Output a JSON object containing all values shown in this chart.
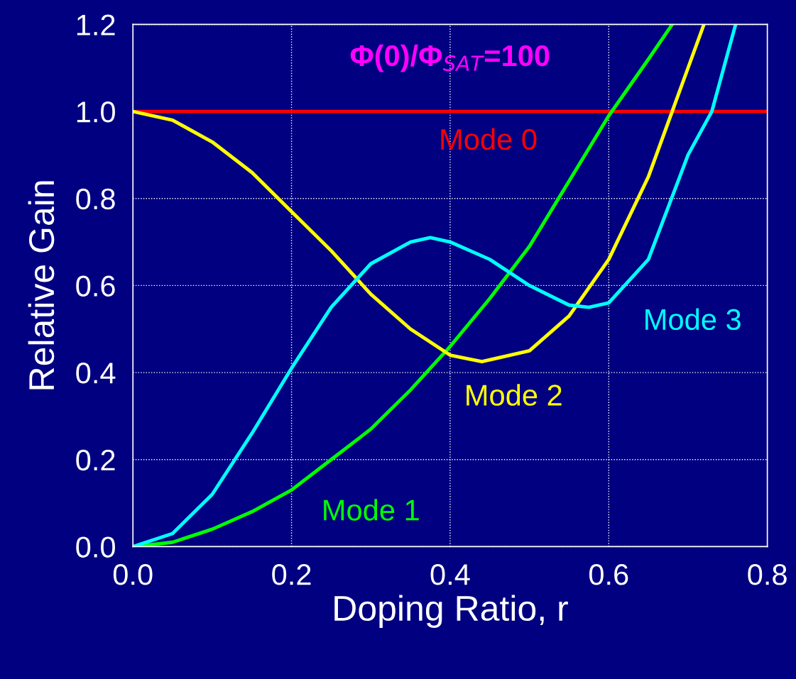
{
  "chart_data": {
    "type": "line",
    "xlabel": "Doping Ratio, r",
    "ylabel": "Relative Gain",
    "xlim": [
      0,
      0.8
    ],
    "ylim": [
      0,
      1.2
    ],
    "xticks": [
      {
        "value": 0,
        "label": "0.0"
      },
      {
        "value": 0.2,
        "label": "0.2"
      },
      {
        "value": 0.4,
        "label": "0.4"
      },
      {
        "value": 0.6,
        "label": "0.6"
      },
      {
        "value": 0.8,
        "label": "0.8"
      }
    ],
    "yticks": [
      {
        "value": 0,
        "label": "0.0"
      },
      {
        "value": 0.2,
        "label": "0.2"
      },
      {
        "value": 0.4,
        "label": "0.4"
      },
      {
        "value": 0.6,
        "label": "0.6"
      },
      {
        "value": 0.8,
        "label": "0.8"
      },
      {
        "value": 1.0,
        "label": "1.0"
      },
      {
        "value": 1.2,
        "label": "1.2"
      }
    ],
    "grid": true,
    "marker": "none",
    "line_style": "solid",
    "legend": false,
    "annotations": [
      "Φ(0)/Φ$_{SAT}$=100"
    ],
    "series": [
      {
        "name": "Mode 0",
        "color": "#ff0000",
        "x": [
          0,
          0.8
        ],
        "values": [
          1.0,
          1.0
        ]
      },
      {
        "name": "Mode 1",
        "color": "#00ff00",
        "x": [
          0,
          0.05,
          0.1,
          0.15,
          0.2,
          0.25,
          0.3,
          0.35,
          0.4,
          0.45,
          0.5,
          0.55,
          0.6,
          0.65,
          0.68
        ],
        "values": [
          0,
          0.01,
          0.04,
          0.08,
          0.13,
          0.2,
          0.27,
          0.36,
          0.46,
          0.57,
          0.69,
          0.84,
          0.99,
          1.12,
          1.2
        ]
      },
      {
        "name": "Mode 2",
        "color": "#ffff00",
        "x": [
          0,
          0.05,
          0.1,
          0.15,
          0.2,
          0.25,
          0.3,
          0.35,
          0.4,
          0.44,
          0.5,
          0.55,
          0.6,
          0.65,
          0.68,
          0.7,
          0.72
        ],
        "values": [
          1.0,
          0.98,
          0.93,
          0.86,
          0.77,
          0.68,
          0.58,
          0.5,
          0.44,
          0.425,
          0.45,
          0.53,
          0.66,
          0.85,
          1.0,
          1.1,
          1.2
        ]
      },
      {
        "name": "Mode 3",
        "color": "#00ffff",
        "x": [
          0,
          0.05,
          0.1,
          0.15,
          0.2,
          0.25,
          0.3,
          0.35,
          0.375,
          0.4,
          0.45,
          0.5,
          0.55,
          0.575,
          0.6,
          0.65,
          0.7,
          0.73,
          0.76
        ],
        "values": [
          0,
          0.03,
          0.12,
          0.26,
          0.41,
          0.55,
          0.65,
          0.7,
          0.71,
          0.7,
          0.66,
          0.6,
          0.555,
          0.55,
          0.56,
          0.66,
          0.9,
          1.0,
          1.2
        ]
      }
    ]
  }
}
